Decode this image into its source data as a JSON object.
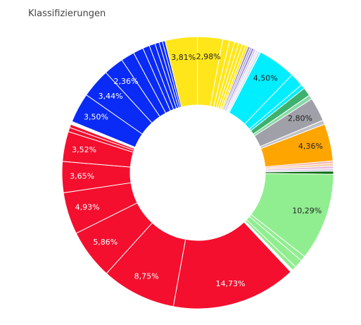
{
  "chart_data": {
    "type": "pie",
    "title": "Klassifizierungen",
    "donut": true,
    "slices": [
      {
        "value": 3.81,
        "color": "#ffe61a",
        "label": "3,81%",
        "label_color": "#222222"
      },
      {
        "value": 2.98,
        "color": "#ffe61a",
        "label": "2,98%",
        "label_color": "#222222"
      },
      {
        "value": 0.8,
        "color": "#ffe61a",
        "label": ""
      },
      {
        "value": 0.6,
        "color": "#ffe61a",
        "label": ""
      },
      {
        "value": 0.5,
        "color": "#ffe61a",
        "label": ""
      },
      {
        "value": 0.45,
        "color": "#ffe61a",
        "label": ""
      },
      {
        "value": 0.4,
        "color": "#ffe61a",
        "label": ""
      },
      {
        "value": 0.3,
        "color": "#ffe61a",
        "label": ""
      },
      {
        "value": 0.25,
        "color": "#8f82c7",
        "label": ""
      },
      {
        "value": 0.25,
        "color": "#b5a8e0",
        "label": ""
      },
      {
        "value": 0.25,
        "color": "#8f82c7",
        "label": ""
      },
      {
        "value": 0.25,
        "color": "#cfc7ef",
        "label": ""
      },
      {
        "value": 0.3,
        "color": "#e7e3f6",
        "label": ""
      },
      {
        "value": 0.3,
        "color": "#c9e8ec",
        "label": ""
      },
      {
        "value": 4.5,
        "color": "#00eeff",
        "label": "4,50%",
        "label_color": "#222222"
      },
      {
        "value": 1.6,
        "color": "#00eeff",
        "label": ""
      },
      {
        "value": 0.5,
        "color": "#00eeff",
        "label": ""
      },
      {
        "value": 1.0,
        "color": "#3db26e",
        "label": ""
      },
      {
        "value": 0.5,
        "color": "#86d9a6",
        "label": ""
      },
      {
        "value": 2.8,
        "color": "#a0a0a8",
        "label": "2,80%",
        "label_color": "#222222"
      },
      {
        "value": 0.5,
        "color": "#c0c0c8",
        "label": ""
      },
      {
        "value": 4.36,
        "color": "#ffa500",
        "label": "4,36%",
        "label_color": "#222222"
      },
      {
        "value": 0.3,
        "color": "#f7b3b3",
        "label": ""
      },
      {
        "value": 0.3,
        "color": "#f4cf9e",
        "label": ""
      },
      {
        "value": 0.3,
        "color": "#e9b6e0",
        "label": ""
      },
      {
        "value": 0.3,
        "color": "#d8d0e8",
        "label": ""
      },
      {
        "value": 0.35,
        "color": "#0a6b10",
        "label": ""
      },
      {
        "value": 10.29,
        "color": "#90ee90",
        "label": "10,29%",
        "label_color": "#222222"
      },
      {
        "value": 0.6,
        "color": "#90ee90",
        "label": ""
      },
      {
        "value": 1.0,
        "color": "#90ee90",
        "label": ""
      },
      {
        "value": 0.5,
        "color": "#90ee90",
        "label": ""
      },
      {
        "value": 0.3,
        "color": "#ffffff",
        "label": ""
      },
      {
        "value": 14.73,
        "color": "#f40f2e",
        "label": "14,73%",
        "label_color": "#ffffff"
      },
      {
        "value": 8.75,
        "color": "#f40f2e",
        "label": "8,75%",
        "label_color": "#ffffff"
      },
      {
        "value": 5.86,
        "color": "#f40f2e",
        "label": "5,86%",
        "label_color": "#ffffff"
      },
      {
        "value": 4.93,
        "color": "#f40f2e",
        "label": "4,93%",
        "label_color": "#ffffff"
      },
      {
        "value": 3.65,
        "color": "#f40f2e",
        "label": "3,65%",
        "label_color": "#ffffff"
      },
      {
        "value": 3.52,
        "color": "#f40f2e",
        "label": "3,52%",
        "label_color": "#ffffff"
      },
      {
        "value": 0.5,
        "color": "#f40f2e",
        "label": ""
      },
      {
        "value": 0.4,
        "color": "#f40f2e",
        "label": ""
      },
      {
        "value": 0.35,
        "color": "#ffffff",
        "label": ""
      },
      {
        "value": 3.5,
        "color": "#0a2af6",
        "label": "3,50%",
        "label_color": "#ffffff"
      },
      {
        "value": 3.44,
        "color": "#0a2af6",
        "label": "3,44%",
        "label_color": "#ffffff"
      },
      {
        "value": 2.36,
        "color": "#0a2af6",
        "label": "2,36%",
        "label_color": "#ffffff"
      },
      {
        "value": 1.6,
        "color": "#0a2af6",
        "label": ""
      },
      {
        "value": 1.2,
        "color": "#0a2af6",
        "label": ""
      },
      {
        "value": 0.8,
        "color": "#0a2af6",
        "label": ""
      },
      {
        "value": 0.7,
        "color": "#0a2af6",
        "label": ""
      },
      {
        "value": 0.5,
        "color": "#0a2af6",
        "label": ""
      },
      {
        "value": 0.4,
        "color": "#0a2af6",
        "label": ""
      },
      {
        "value": 0.3,
        "color": "#0a2af6",
        "label": ""
      }
    ]
  }
}
